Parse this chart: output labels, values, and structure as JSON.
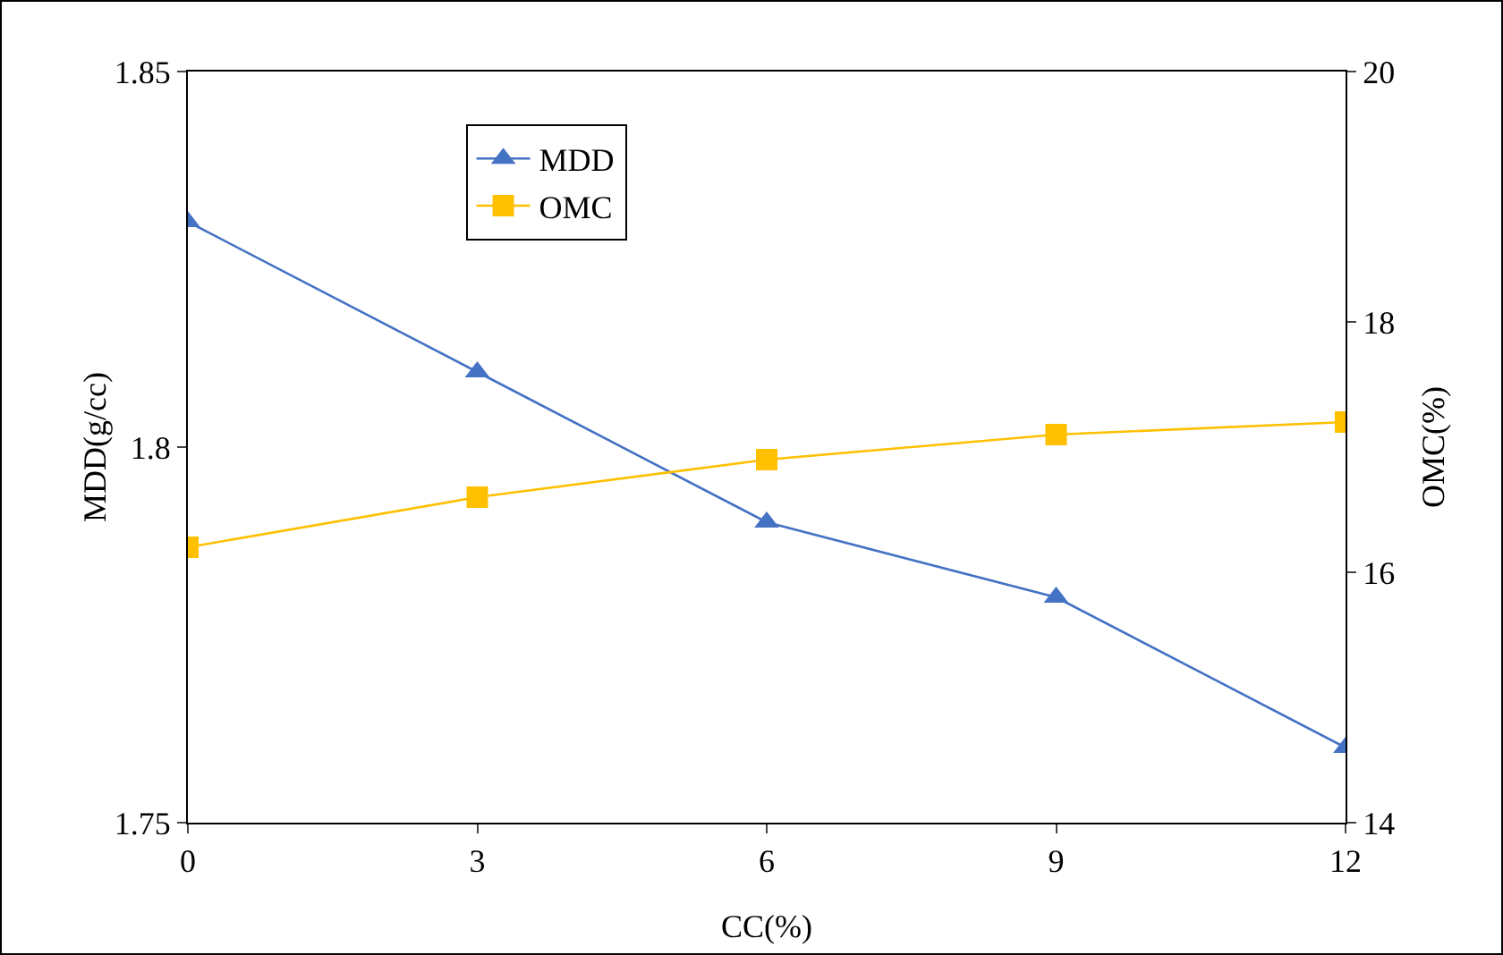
{
  "chart_data": {
    "type": "line",
    "xlabel": "CC(%)",
    "ylabel": "MDD(g/cc)",
    "y2label": "OMC(%)",
    "x": [
      0,
      3,
      6,
      9,
      12
    ],
    "series": [
      {
        "name": "MDD",
        "color": "#4472c4",
        "marker": "triangle",
        "values": [
          1.83,
          1.81,
          1.79,
          1.78,
          1.76
        ]
      },
      {
        "name": "OMC",
        "color": "#ffc000",
        "marker": "square",
        "axis": "y2",
        "values": [
          16.2,
          16.6,
          16.9,
          17.1,
          17.2
        ]
      }
    ],
    "xlim": [
      0,
      12
    ],
    "xticks": [
      0,
      3,
      6,
      9,
      12
    ],
    "ylim": [
      1.75,
      1.85
    ],
    "yticks": [
      1.75,
      1.8,
      1.85
    ],
    "y2lim": [
      14,
      20
    ],
    "y2ticks": [
      14,
      16,
      18,
      20
    ],
    "grid": false,
    "legend": "top left",
    "line_style": "solid"
  }
}
